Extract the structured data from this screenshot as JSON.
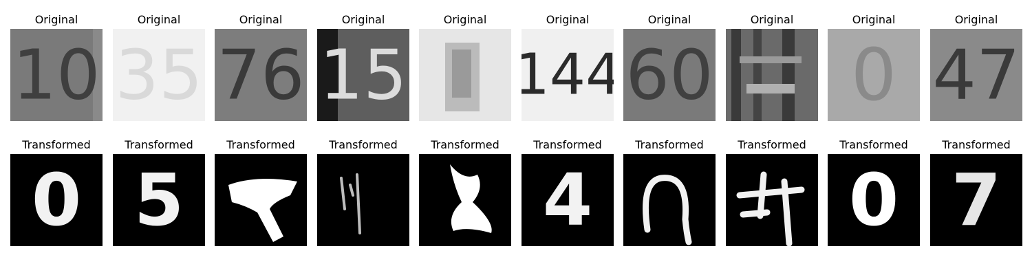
{
  "rows": [
    {
      "row": "original",
      "title": "Original",
      "images": [
        {
          "digits": "10",
          "background": "#7a7a7a",
          "ink": "#3f3f3f"
        },
        {
          "digits": "35",
          "background": "#f1f1f1",
          "ink": "#d9d9d9"
        },
        {
          "digits": "76",
          "background": "#7d7d7d",
          "ink": "#3a3a3a"
        },
        {
          "digits": "15",
          "background": "#5e5e5e",
          "ink": "#dcdcdc"
        },
        {
          "digits": "",
          "background": "#e6e6e6",
          "ink": "#9a9a9a"
        },
        {
          "digits": "144",
          "background": "#f0f0f0",
          "ink": "#2b2b2b"
        },
        {
          "digits": "60",
          "background": "#7a7a7a",
          "ink": "#404040"
        },
        {
          "digits": "",
          "background": "#6a6a6a",
          "ink": "#3a3a3a"
        },
        {
          "digits": "0",
          "background": "#a9a9a9",
          "ink": "#8a8a8a"
        },
        {
          "digits": "47",
          "background": "#8a8a8a",
          "ink": "#3a3a3a"
        }
      ]
    },
    {
      "row": "transformed",
      "title": "Transformed",
      "images": [
        {
          "digits": "0",
          "background": "#000000",
          "ink": "#f2f2f2"
        },
        {
          "digits": "5",
          "background": "#000000",
          "ink": "#f2f2f2"
        },
        {
          "digits": "",
          "background": "#000000",
          "ink": "#ffffff"
        },
        {
          "digits": "",
          "background": "#000000",
          "ink": "#cfcfcf"
        },
        {
          "digits": "",
          "background": "#000000",
          "ink": "#ffffff"
        },
        {
          "digits": "4",
          "background": "#000000",
          "ink": "#f2f2f2"
        },
        {
          "digits": "",
          "background": "#000000",
          "ink": "#f2f2f2"
        },
        {
          "digits": "",
          "background": "#000000",
          "ink": "#f2f2f2"
        },
        {
          "digits": "0",
          "background": "#000000",
          "ink": "#ffffff"
        },
        {
          "digits": "7",
          "background": "#000000",
          "ink": "#e6e6e6"
        }
      ]
    }
  ]
}
